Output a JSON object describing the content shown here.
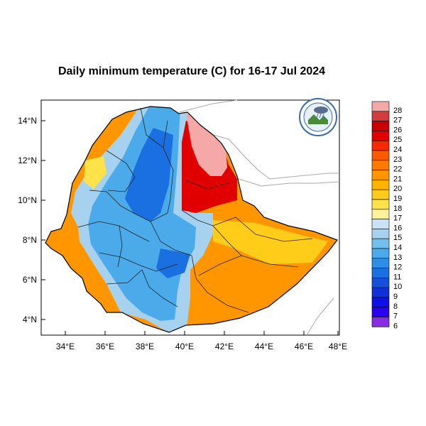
{
  "title": "Daily minimum temperature (C) for 16-17 Jul 2024",
  "axes": {
    "x_ticks": [
      "34°E",
      "36°E",
      "38°E",
      "40°E",
      "42°E",
      "44°E",
      "46°E",
      "48°E"
    ],
    "y_ticks": [
      "14°N",
      "12°N",
      "10°N",
      "8°N",
      "6°N",
      "4°N"
    ]
  },
  "logo": {
    "icon": "ethiopian-meteorology-institute-logo"
  },
  "colorbar": {
    "levels": [
      "28",
      "27",
      "26",
      "25",
      "24",
      "23",
      "22",
      "21",
      "20",
      "19",
      "18",
      "17",
      "16",
      "15",
      "14",
      "13",
      "12",
      "11",
      "10",
      "9",
      "8",
      "7",
      "6"
    ],
    "colors": [
      "#f5a8a8",
      "#d23c3c",
      "#c80000",
      "#e10000",
      "#f52a00",
      "#fb5a00",
      "#fd7a00",
      "#ff9600",
      "#ffb400",
      "#ffcc1a",
      "#fde24a",
      "#fff09a",
      "#c8e4f4",
      "#a6d2f0",
      "#74c0ec",
      "#4aaaea",
      "#2c8ee6",
      "#1a70e0",
      "#1450da",
      "#1230d8",
      "#0e10e6",
      "#2a00f0",
      "#8a2ce2"
    ]
  },
  "map_colors": {
    "blue_light": "#a6d2f0",
    "blue_mid": "#4aaaea",
    "blue_dark": "#1a70e0",
    "orange": "#ff9600",
    "orange_light": "#ffcc1a",
    "yellow": "#fde24a",
    "red": "#e10000",
    "pink": "#f5a8a8"
  }
}
